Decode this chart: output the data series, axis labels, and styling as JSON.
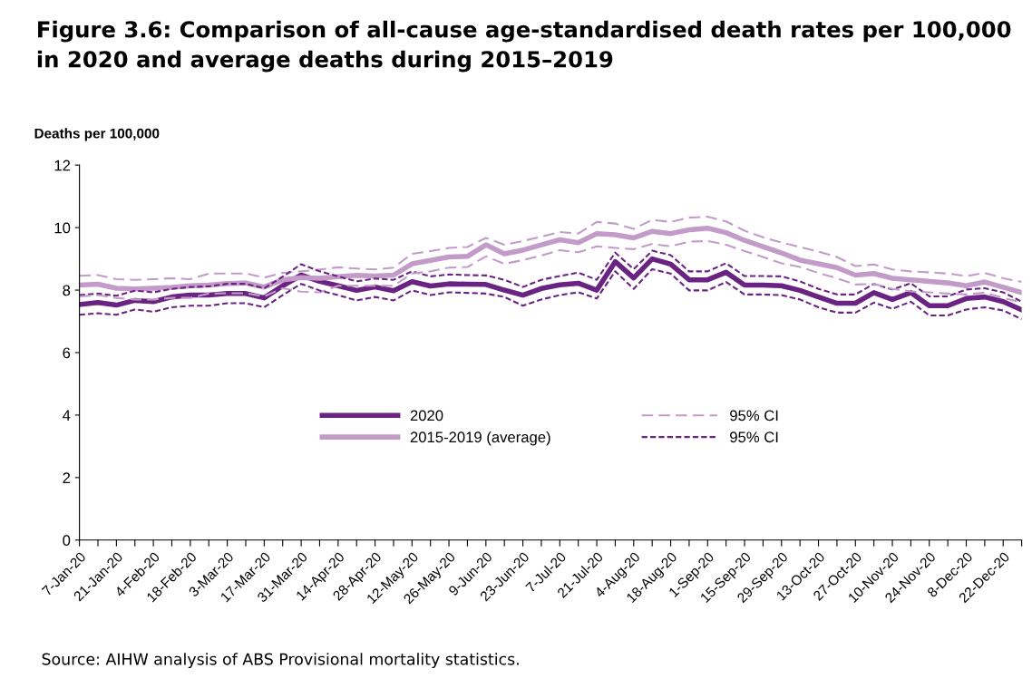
{
  "chart_data": {
    "type": "line",
    "title": "Figure 3.6: Comparison of all-cause age-standardised death rates per 100,000\nin 2020 and average deaths during 2015–2019",
    "ylabel": "Deaths per 100,000",
    "categories": [
      "7-Jan-20",
      null,
      "21-Jan-20",
      null,
      "4-Feb-20",
      null,
      "18-Feb-20",
      null,
      "3-Mar-20",
      null,
      "17-Mar-20",
      null,
      "31-Mar-20",
      null,
      "14-Apr-20",
      null,
      "28-Apr-20",
      null,
      "12-May-20",
      null,
      "26-May-20",
      null,
      "9-Jun-20",
      null,
      "23-Jun-20",
      null,
      "7-Jul-20",
      null,
      "21-Jul-20",
      null,
      "4-Aug-20",
      null,
      "18-Aug-20",
      null,
      "1-Sep-20",
      null,
      "15-Sep-20",
      null,
      "29-Sep-20",
      null,
      "13-Oct-20",
      null,
      "27-Oct-20",
      null,
      "10-Nov-20",
      null,
      "24-Nov-20",
      null,
      "8-Dec-20",
      null,
      "22-Dec-20",
      null
    ],
    "series": [
      {
        "name": "2020",
        "color": "#6a2383",
        "line_style": "solid",
        "values": [
          7.54,
          7.6,
          7.52,
          7.67,
          7.63,
          7.78,
          7.84,
          7.84,
          7.89,
          7.89,
          7.75,
          8.14,
          8.48,
          8.28,
          8.14,
          7.99,
          8.1,
          7.98,
          8.27,
          8.13,
          8.2,
          8.19,
          8.18,
          8.0,
          7.84,
          8.05,
          8.17,
          8.22,
          8.0,
          8.91,
          8.39,
          9.0,
          8.83,
          8.33,
          8.33,
          8.57,
          8.16,
          8.16,
          8.14,
          7.99,
          7.78,
          7.58,
          7.58,
          7.92,
          7.7,
          7.92,
          7.5,
          7.5,
          7.73,
          7.78,
          7.63,
          7.37
        ]
      },
      {
        "name": "2015-2019 (average)",
        "color": "#c39bc9",
        "line_style": "solid",
        "values": [
          8.16,
          8.19,
          8.06,
          8.04,
          8.06,
          8.09,
          8.14,
          8.16,
          8.21,
          8.23,
          8.1,
          8.33,
          8.4,
          8.38,
          8.43,
          8.47,
          8.45,
          8.48,
          8.84,
          8.95,
          9.06,
          9.08,
          9.45,
          9.16,
          9.28,
          9.45,
          9.61,
          9.52,
          9.81,
          9.77,
          9.67,
          9.88,
          9.81,
          9.93,
          9.98,
          9.84,
          9.59,
          9.39,
          9.19,
          8.96,
          8.84,
          8.72,
          8.48,
          8.53,
          8.38,
          8.33,
          8.28,
          8.23,
          8.14,
          8.26,
          8.09,
          7.92
        ]
      },
      {
        "name": "95% CI",
        "color": "#c39bc9",
        "line_style": "dashed",
        "values": [
          8.46,
          8.48,
          8.35,
          8.33,
          8.35,
          8.38,
          8.35,
          8.53,
          8.53,
          8.53,
          8.4,
          8.55,
          8.6,
          8.66,
          8.73,
          8.69,
          8.66,
          8.72,
          9.16,
          9.25,
          9.35,
          9.38,
          9.67,
          9.45,
          9.57,
          9.71,
          9.86,
          9.81,
          10.18,
          10.13,
          9.96,
          10.25,
          10.18,
          10.32,
          10.35,
          10.2,
          9.9,
          9.69,
          9.52,
          9.38,
          9.23,
          9.06,
          8.77,
          8.82,
          8.66,
          8.6,
          8.57,
          8.53,
          8.45,
          8.55,
          8.38,
          8.26
        ]
      },
      {
        "name": "95% CI",
        "color": "#6a2383",
        "line_style": "dotted",
        "values": [
          7.84,
          7.89,
          7.82,
          7.98,
          7.93,
          8.04,
          8.1,
          8.12,
          8.2,
          8.2,
          8.06,
          8.43,
          8.83,
          8.6,
          8.44,
          8.28,
          8.37,
          8.33,
          8.6,
          8.44,
          8.5,
          8.48,
          8.47,
          8.33,
          8.1,
          8.33,
          8.45,
          8.56,
          8.33,
          9.2,
          8.67,
          9.26,
          9.12,
          8.6,
          8.6,
          8.86,
          8.45,
          8.45,
          8.44,
          8.28,
          8.04,
          7.86,
          7.86,
          8.2,
          8.02,
          8.22,
          7.8,
          7.8,
          8.02,
          8.06,
          7.93,
          7.63
        ]
      },
      {
        "color": "#c39bc9",
        "line_style": "dashed",
        "values": [
          7.8,
          7.84,
          7.75,
          7.7,
          7.7,
          7.75,
          7.75,
          7.89,
          7.9,
          7.9,
          7.8,
          8.06,
          7.95,
          7.93,
          8.14,
          8.14,
          8.14,
          8.14,
          8.53,
          8.6,
          8.72,
          8.74,
          9.08,
          8.84,
          8.96,
          9.11,
          9.28,
          9.21,
          9.4,
          9.35,
          9.31,
          9.48,
          9.4,
          9.55,
          9.57,
          9.45,
          9.25,
          9.06,
          8.86,
          8.74,
          8.55,
          8.38,
          8.18,
          8.2,
          8.04,
          7.96,
          7.93,
          7.89,
          7.86,
          7.92,
          7.75,
          7.6
        ]
      },
      {
        "color": "#6a2383",
        "line_style": "dotted",
        "values": [
          7.21,
          7.26,
          7.21,
          7.38,
          7.31,
          7.45,
          7.5,
          7.5,
          7.58,
          7.58,
          7.45,
          7.84,
          8.2,
          7.99,
          7.84,
          7.67,
          7.78,
          7.67,
          7.99,
          7.84,
          7.93,
          7.91,
          7.89,
          7.78,
          7.5,
          7.7,
          7.84,
          7.93,
          7.73,
          8.6,
          8.04,
          8.67,
          8.53,
          7.99,
          7.99,
          8.26,
          7.86,
          7.86,
          7.84,
          7.7,
          7.45,
          7.28,
          7.28,
          7.6,
          7.4,
          7.63,
          7.19,
          7.19,
          7.38,
          7.45,
          7.35,
          7.07
        ]
      }
    ],
    "ylim": [
      0,
      12
    ],
    "yticks": [
      0,
      2,
      4,
      6,
      8,
      10,
      12
    ],
    "grid": false,
    "legend": "center",
    "annotations": [
      "Source: AIHW analysis of ABS Provisional mortality statistics."
    ]
  }
}
